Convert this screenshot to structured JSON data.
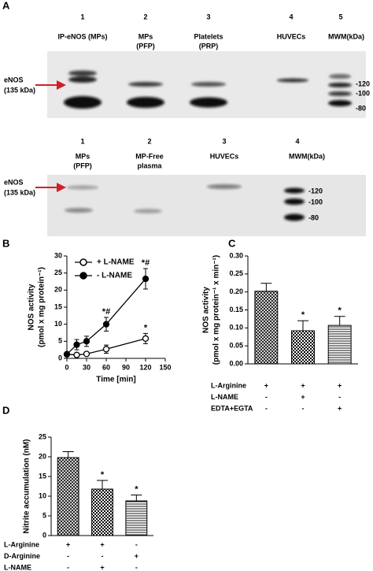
{
  "panel_a": {
    "letter": "A",
    "blot1": {
      "lanes": [
        {
          "number": "1",
          "label": [
            "IP-eNOS (MPs)"
          ]
        },
        {
          "number": "2",
          "label": [
            "MPs",
            "(PFP)"
          ]
        },
        {
          "number": "3",
          "label": [
            "Platelets",
            "(PRP)"
          ]
        },
        {
          "number": "4",
          "label": [
            "HUVECs"
          ]
        },
        {
          "number": "5",
          "label": [
            "MWM(kDa)"
          ]
        }
      ],
      "target": [
        "eNOS",
        "(135 kDa)"
      ],
      "markers": [
        "-120",
        "-100",
        "-80"
      ]
    },
    "blot2": {
      "lanes": [
        {
          "number": "1",
          "label": [
            "MPs",
            "(PFP)"
          ]
        },
        {
          "number": "2",
          "label": [
            "MP-Free",
            "plasma"
          ]
        },
        {
          "number": "3",
          "label": [
            "HUVECs"
          ]
        },
        {
          "number": "4",
          "label": [
            "MWM(kDa)"
          ]
        }
      ],
      "target": [
        "eNOS",
        "(135 kDa)"
      ],
      "markers": [
        "-120",
        "-100",
        "-80"
      ]
    }
  },
  "chart_data": [
    {
      "type": "line",
      "letter": "B",
      "ylabel": [
        "NOS activity",
        "(pmol x mg protein⁻¹)"
      ],
      "xlabel": "Time [min]",
      "x": [
        0,
        15,
        30,
        60,
        120
      ],
      "series": [
        {
          "name": "+ L-NAME",
          "color": "#000000",
          "marker": "open",
          "values": [
            1.2,
            1.0,
            1.3,
            2.7,
            5.8
          ],
          "errors": [
            0.5,
            0.5,
            0.5,
            1.2,
            1.5
          ],
          "annotations": [
            null,
            null,
            null,
            null,
            "*"
          ]
        },
        {
          "name": "- L-NAME",
          "color": "#000000",
          "marker": "filled",
          "values": [
            1.2,
            4.0,
            5.0,
            10.0,
            23.3
          ],
          "errors": [
            0.5,
            1.5,
            1.5,
            2.0,
            3.0
          ],
          "annotations": [
            null,
            null,
            null,
            "*#",
            "*#"
          ]
        }
      ],
      "xlim": [
        0,
        150
      ],
      "xticks": [
        0,
        30,
        60,
        90,
        120,
        150
      ],
      "ylim": [
        0,
        30
      ],
      "yticks": [
        0,
        5,
        10,
        15,
        20,
        25,
        30
      ],
      "legend": "upper left"
    },
    {
      "type": "bar",
      "letter": "C",
      "ylabel": [
        "NOS activity",
        "(pmol x mg protein⁻¹ x min⁻¹)"
      ],
      "values": [
        0.202,
        0.092,
        0.107
      ],
      "errors": [
        0.022,
        0.028,
        0.025
      ],
      "annotations": [
        null,
        "*",
        "*"
      ],
      "patterns": [
        "crosshatch",
        "checker",
        "hlines"
      ],
      "ylim": [
        0,
        0.3
      ],
      "yticks": [
        {
          "value": 0,
          "label": "0.00"
        },
        0.05,
        {
          "value": 0.1,
          "label": "0.10"
        },
        0.15,
        {
          "value": 0.2,
          "label": "0.20"
        },
        0.25,
        {
          "value": 0.3,
          "label": "0.30"
        }
      ],
      "treatments": [
        {
          "label": "L-Arginine",
          "signs": [
            "+",
            "+",
            "+"
          ]
        },
        {
          "label": "L-NAME",
          "signs": [
            "-",
            "+",
            "-"
          ]
        },
        {
          "label": "EDTA+EGTA",
          "signs": [
            "-",
            "-",
            "+"
          ]
        }
      ]
    },
    {
      "type": "bar",
      "letter": "D",
      "ylabel": [
        "Nitrite accumulation (nM)"
      ],
      "values": [
        19.8,
        11.8,
        8.8
      ],
      "errors": [
        1.5,
        2.2,
        1.5
      ],
      "annotations": [
        null,
        "*",
        "*"
      ],
      "patterns": [
        "crosshatch",
        "checker",
        "hlines"
      ],
      "ylim": [
        0,
        25
      ],
      "yticks": [
        0,
        5,
        10,
        15,
        20,
        25
      ],
      "treatments": [
        {
          "label": "L-Arginine",
          "signs": [
            "+",
            "+",
            "-"
          ]
        },
        {
          "label": "D-Arginine",
          "signs": [
            "-",
            "-",
            "+"
          ]
        },
        {
          "label": "L-NAME",
          "signs": [
            "-",
            "+",
            "-"
          ]
        }
      ]
    }
  ]
}
